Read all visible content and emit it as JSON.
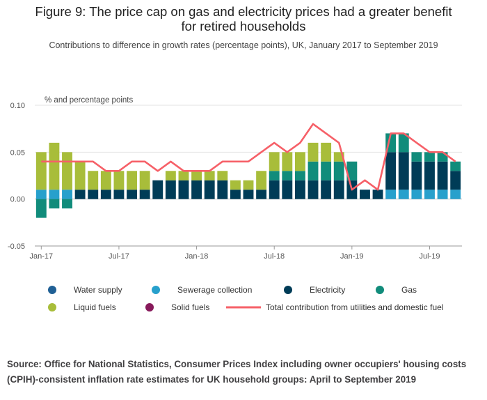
{
  "title_line1": "Figure 9: The price cap on gas and electricity prices had a greater benefit",
  "title_line2": "for retired households",
  "subtitle": "Contributions to difference in growth rates (percentage points), UK, January 2017 to September 2019",
  "source": "Source: Office for National Statistics, Consumer Prices Index including owner occupiers' housing costs (CPIH)-consistent inflation rate estimates for UK household groups: April to September 2019",
  "colors": {
    "water": "#206095",
    "sewerage": "#27a0cc",
    "electricity": "#003c57",
    "gas": "#118c7b",
    "liquid": "#a8bd3a",
    "solid": "#871a5b",
    "total": "#f66068"
  },
  "chart_data": {
    "type": "bar",
    "stacked": true,
    "unit_label": "% and percentage points",
    "ylim": [
      -0.05,
      0.1
    ],
    "yticks": [
      "0.10",
      "0.05",
      "0.00",
      "-0.05"
    ],
    "ytick_values": [
      0.1,
      0.05,
      0.0,
      -0.05
    ],
    "xtick_labels": [
      {
        "index": 0,
        "label": "Jan-17"
      },
      {
        "index": 6,
        "label": "Jul-17"
      },
      {
        "index": 12,
        "label": "Jan-18"
      },
      {
        "index": 18,
        "label": "Jul-18"
      },
      {
        "index": 24,
        "label": "Jan-19"
      },
      {
        "index": 30,
        "label": "Jul-19"
      }
    ],
    "categories": [
      "Jan-17",
      "Feb-17",
      "Mar-17",
      "Apr-17",
      "May-17",
      "Jun-17",
      "Jul-17",
      "Aug-17",
      "Sep-17",
      "Oct-17",
      "Nov-17",
      "Dec-17",
      "Jan-18",
      "Feb-18",
      "Mar-18",
      "Apr-18",
      "May-18",
      "Jun-18",
      "Jul-18",
      "Aug-18",
      "Sep-18",
      "Oct-18",
      "Nov-18",
      "Dec-18",
      "Jan-19",
      "Feb-19",
      "Mar-19",
      "Apr-19",
      "May-19",
      "Jun-19",
      "Jul-19",
      "Aug-19",
      "Sep-19"
    ],
    "series": [
      {
        "name": "Water supply",
        "key": "water",
        "values": [
          0,
          0,
          0,
          0,
          0,
          0,
          0,
          0,
          0,
          0,
          0,
          0,
          0,
          0,
          0,
          0,
          0,
          0,
          0,
          0,
          0,
          0,
          0,
          0,
          0,
          0,
          0,
          0,
          0,
          0,
          0,
          0,
          0
        ]
      },
      {
        "name": "Sewerage collection",
        "key": "sewerage",
        "values": [
          0.01,
          0.01,
          0.01,
          0,
          0,
          0,
          0,
          0,
          0,
          0,
          0,
          0,
          0,
          0,
          0,
          0,
          0,
          0,
          0,
          0,
          0,
          0,
          0,
          0,
          0,
          0,
          0,
          0.01,
          0.01,
          0.01,
          0.01,
          0.01,
          0.01
        ]
      },
      {
        "name": "Electricity",
        "key": "electricity",
        "values": [
          0,
          0,
          0,
          0.01,
          0.01,
          0.01,
          0.01,
          0.01,
          0.01,
          0.02,
          0.02,
          0.02,
          0.02,
          0.02,
          0.02,
          0.01,
          0.01,
          0.01,
          0.02,
          0.02,
          0.02,
          0.02,
          0.02,
          0.02,
          0.02,
          0.01,
          0.01,
          0.04,
          0.04,
          0.03,
          0.03,
          0.03,
          0.02
        ]
      },
      {
        "name": "Gas",
        "key": "gas",
        "values": [
          -0.02,
          -0.01,
          -0.01,
          0,
          0,
          0,
          0,
          0,
          0,
          0,
          0,
          0,
          0,
          0,
          0,
          0,
          0,
          0,
          0.01,
          0.01,
          0.01,
          0.02,
          0.02,
          0.02,
          0.02,
          0,
          0,
          0.02,
          0.02,
          0.01,
          0.01,
          0.01,
          0.01
        ]
      },
      {
        "name": "Liquid fuels",
        "key": "liquid",
        "values": [
          0.04,
          0.05,
          0.04,
          0.03,
          0.02,
          0.02,
          0.02,
          0.02,
          0.02,
          0,
          0.01,
          0.01,
          0.01,
          0.01,
          0.01,
          0.01,
          0.01,
          0.02,
          0.02,
          0.02,
          0.02,
          0.02,
          0.02,
          0.01,
          0,
          0,
          0,
          0,
          0,
          0,
          0,
          0,
          0
        ]
      },
      {
        "name": "Solid fuels",
        "key": "solid",
        "values": [
          0,
          0,
          0,
          0,
          0,
          0,
          0,
          0,
          0,
          0,
          0,
          0,
          0,
          0,
          0,
          0,
          0,
          0,
          0,
          0,
          0,
          0,
          0,
          0,
          0,
          0,
          0,
          0,
          0,
          0,
          0,
          0,
          0
        ]
      }
    ],
    "line": {
      "name": "Total contribution from utilities and domestic fuel",
      "key": "total",
      "values": [
        0.04,
        0.04,
        0.04,
        0.04,
        0.04,
        0.03,
        0.03,
        0.04,
        0.04,
        0.03,
        0.04,
        0.03,
        0.03,
        0.03,
        0.04,
        0.04,
        0.04,
        0.05,
        0.06,
        0.05,
        0.06,
        0.08,
        0.07,
        0.06,
        0.01,
        0.02,
        0.01,
        0.07,
        0.07,
        0.06,
        0.05,
        0.05,
        0.04
      ]
    },
    "legend_position": "bottom"
  }
}
